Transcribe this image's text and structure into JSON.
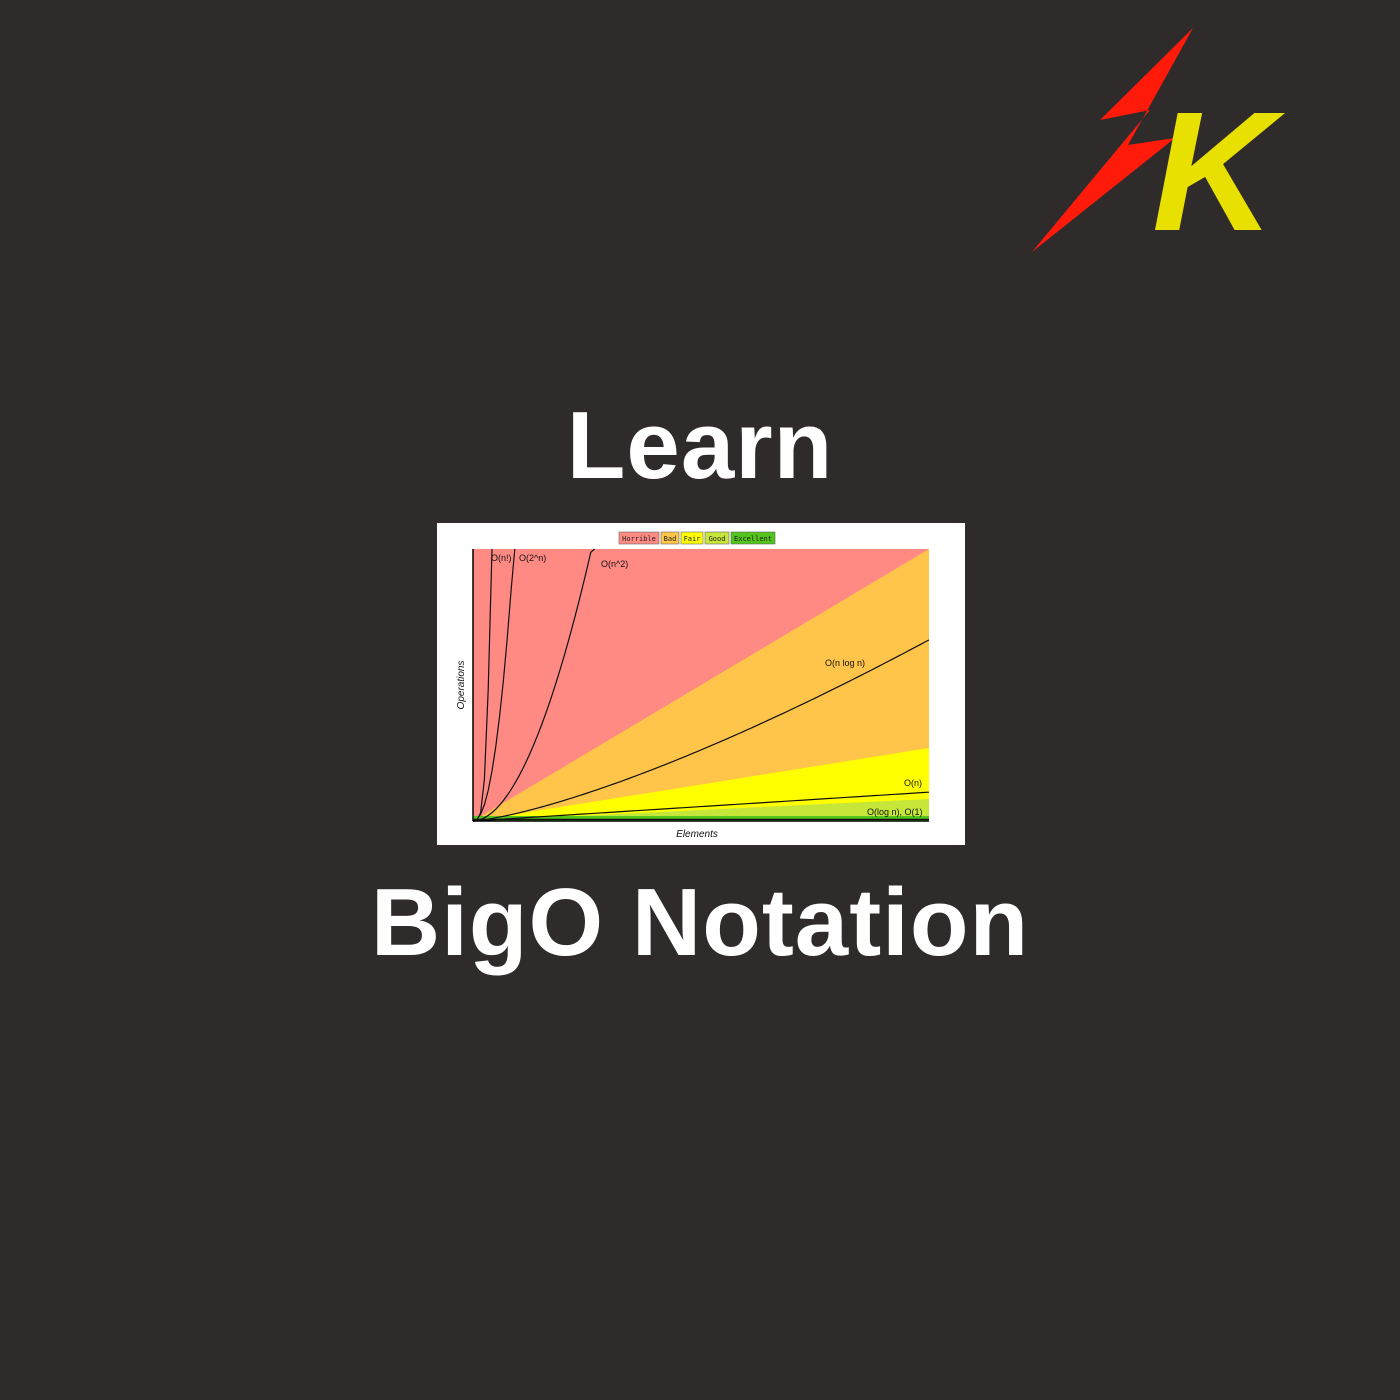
{
  "brand": {
    "logo_letter": "K",
    "bolt_color": "#ff1a0a",
    "letter_color": "#e8e000",
    "icon": "lightning-bolt-icon"
  },
  "heading": {
    "top": "Learn",
    "bottom": "BigO Notation"
  },
  "colors": {
    "background": "#302b2b",
    "text": "#ffffff"
  },
  "chart_data": {
    "type": "line",
    "xlabel": "Elements",
    "ylabel": "Operations",
    "legend": [
      {
        "label": "Horrible",
        "color": "#ff8a84"
      },
      {
        "label": "Bad",
        "color": "#ffc54a"
      },
      {
        "label": "Fair",
        "color": "#ffff00"
      },
      {
        "label": "Good",
        "color": "#c6e63a"
      },
      {
        "label": "Excellent",
        "color": "#52c41a"
      }
    ],
    "legend_position": "top-center",
    "series": [
      {
        "name": "O(n!)"
      },
      {
        "name": "O(2^n)"
      },
      {
        "name": "O(n^2)"
      },
      {
        "name": "O(n log n)"
      },
      {
        "name": "O(n)"
      },
      {
        "name": "O(log n), O(1)"
      }
    ]
  }
}
